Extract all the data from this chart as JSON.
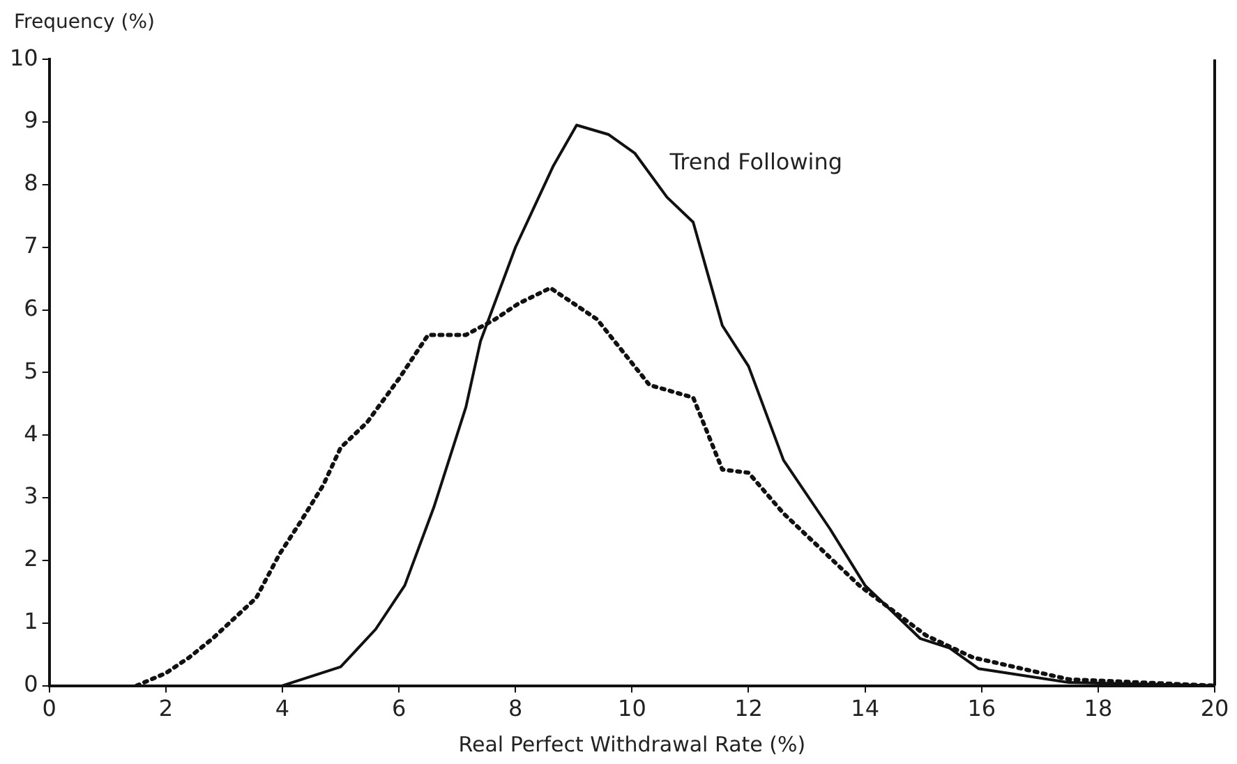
{
  "chart_data": {
    "type": "line",
    "xlabel": "Real Perfect Withdrawal Rate (%)",
    "ylabel": "Frequency (%)",
    "xlim": [
      0,
      20
    ],
    "xticks": [
      0,
      2,
      4,
      6,
      8,
      10,
      12,
      14,
      16,
      18,
      20
    ],
    "ylim": [
      0,
      10
    ],
    "yticks": [
      0,
      1,
      2,
      3,
      4,
      5,
      6,
      7,
      8,
      9,
      10
    ],
    "grid": false,
    "legend": false,
    "marker": "none",
    "series": [
      {
        "name": "Trend Following",
        "color": "#111111",
        "line_style": "solid",
        "x": [
          4,
          5,
          5.6,
          6.1,
          6.6,
          7.15,
          7.4,
          8,
          8.65,
          9.05,
          9.6,
          10.05,
          10.6,
          11.05,
          11.55,
          12,
          12.6,
          13.4,
          14,
          14.95,
          15.45,
          15.95,
          17.5,
          20
        ],
        "values": [
          0,
          0.3,
          0.9,
          1.6,
          2.85,
          4.45,
          5.5,
          7,
          8.3,
          8.95,
          8.8,
          8.5,
          7.8,
          7.4,
          5.75,
          5.1,
          3.6,
          2.5,
          1.6,
          0.75,
          0.6,
          0.27,
          0.05,
          0
        ]
      },
      {
        "color": "#111111",
        "line_style": "dotted",
        "x": [
          1.5,
          2,
          2.4,
          2.8,
          3.55,
          3.95,
          4.3,
          4.7,
          5,
          5.45,
          6,
          6.5,
          7.15,
          7.65,
          8.05,
          8.6,
          9.4,
          10.3,
          11.05,
          11.55,
          12,
          12.6,
          13.9,
          15.05,
          15.85,
          17.5,
          20
        ],
        "values": [
          0,
          0.2,
          0.45,
          0.75,
          1.4,
          2.1,
          2.6,
          3.2,
          3.8,
          4.2,
          4.9,
          5.6,
          5.6,
          5.85,
          6.1,
          6.35,
          5.85,
          4.8,
          4.6,
          3.45,
          3.4,
          2.75,
          1.6,
          0.8,
          0.45,
          0.1,
          0
        ]
      }
    ]
  }
}
